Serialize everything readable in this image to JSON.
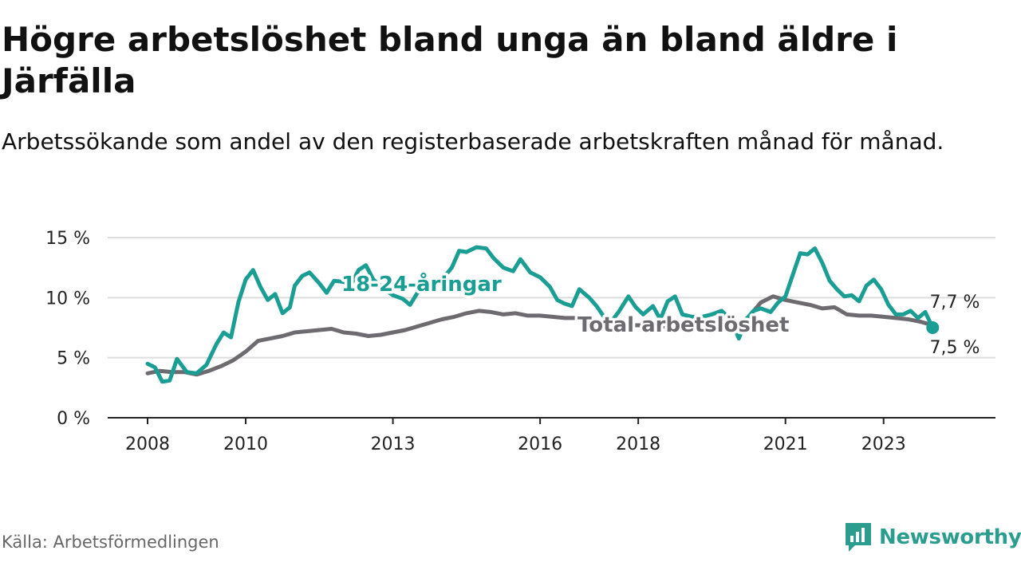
{
  "header": {
    "title": "Högre arbetslöshet bland unga än bland äldre i Järfälla",
    "subtitle": "Arbetssökande som andel av den registerbaserade arbetskraften månad för månad."
  },
  "footer": {
    "source": "Källa: Arbetsförmedlingen",
    "brand": "Newsworthy"
  },
  "colors": {
    "youth": "#1a9e94",
    "total": "#6d6a70",
    "grid": "#dddddd",
    "axis": "#222222",
    "brand": "#2a9d8f"
  },
  "chart_data": {
    "type": "line",
    "title": "Högre arbetslöshet bland unga än bland äldre i Järfälla",
    "subtitle": "Arbetssökande som andel av den registerbaserade arbetskraften månad för månad.",
    "xlabel": "",
    "ylabel": "",
    "xlim": [
      2008,
      2024.5
    ],
    "ylim": [
      0,
      15
    ],
    "x_ticks": [
      2008,
      2010,
      2013,
      2016,
      2018,
      2021,
      2023
    ],
    "x_tick_labels": [
      "2008",
      "2010",
      "2013",
      "2016",
      "2018",
      "2021",
      "2023"
    ],
    "y_ticks": [
      0,
      5,
      10,
      15
    ],
    "y_tick_labels": [
      "0 %",
      "5 %",
      "10 %",
      "15 %"
    ],
    "grid": true,
    "series": [
      {
        "name": "Total arbetslöshet",
        "label": "Total arbetslöshet",
        "end_label": "7,7 %",
        "points": [
          [
            2008.0,
            3.7
          ],
          [
            2008.25,
            3.9
          ],
          [
            2008.5,
            3.8
          ],
          [
            2008.75,
            3.8
          ],
          [
            2009.0,
            3.6
          ],
          [
            2009.25,
            3.9
          ],
          [
            2009.5,
            4.3
          ],
          [
            2009.75,
            4.8
          ],
          [
            2010.0,
            5.5
          ],
          [
            2010.25,
            6.4
          ],
          [
            2010.5,
            6.6
          ],
          [
            2010.75,
            6.8
          ],
          [
            2011.0,
            7.1
          ],
          [
            2011.25,
            7.2
          ],
          [
            2011.5,
            7.3
          ],
          [
            2011.75,
            7.4
          ],
          [
            2012.0,
            7.1
          ],
          [
            2012.25,
            7.0
          ],
          [
            2012.5,
            6.8
          ],
          [
            2012.75,
            6.9
          ],
          [
            2013.0,
            7.1
          ],
          [
            2013.25,
            7.3
          ],
          [
            2013.5,
            7.6
          ],
          [
            2013.75,
            7.9
          ],
          [
            2014.0,
            8.2
          ],
          [
            2014.25,
            8.4
          ],
          [
            2014.5,
            8.7
          ],
          [
            2014.75,
            8.9
          ],
          [
            2015.0,
            8.8
          ],
          [
            2015.25,
            8.6
          ],
          [
            2015.5,
            8.7
          ],
          [
            2015.75,
            8.5
          ],
          [
            2016.0,
            8.5
          ],
          [
            2016.25,
            8.4
          ],
          [
            2016.5,
            8.3
          ],
          [
            2016.75,
            8.3
          ],
          [
            2017.0,
            8.2
          ],
          [
            2017.25,
            8.0
          ],
          [
            2017.5,
            7.8
          ],
          [
            2017.75,
            7.7
          ],
          [
            2018.0,
            7.7
          ],
          [
            2018.25,
            7.6
          ],
          [
            2018.5,
            7.6
          ],
          [
            2018.75,
            7.6
          ],
          [
            2019.0,
            7.5
          ],
          [
            2019.25,
            7.5
          ],
          [
            2019.5,
            7.5
          ],
          [
            2019.75,
            7.6
          ],
          [
            2020.0,
            7.6
          ],
          [
            2020.25,
            8.4
          ],
          [
            2020.5,
            9.6
          ],
          [
            2020.75,
            10.1
          ],
          [
            2021.0,
            9.8
          ],
          [
            2021.25,
            9.6
          ],
          [
            2021.5,
            9.4
          ],
          [
            2021.75,
            9.1
          ],
          [
            2022.0,
            9.2
          ],
          [
            2022.25,
            8.6
          ],
          [
            2022.5,
            8.5
          ],
          [
            2022.75,
            8.5
          ],
          [
            2023.0,
            8.4
          ],
          [
            2023.25,
            8.3
          ],
          [
            2023.5,
            8.2
          ],
          [
            2023.75,
            8.0
          ],
          [
            2024.0,
            7.7
          ]
        ]
      },
      {
        "name": "18-24-åringar",
        "label": "18-24-åringar",
        "end_label": "7,5 %",
        "points": [
          [
            2008.0,
            4.5
          ],
          [
            2008.15,
            4.2
          ],
          [
            2008.3,
            3.0
          ],
          [
            2008.45,
            3.1
          ],
          [
            2008.6,
            4.9
          ],
          [
            2008.8,
            3.8
          ],
          [
            2009.0,
            3.7
          ],
          [
            2009.2,
            4.4
          ],
          [
            2009.4,
            6.1
          ],
          [
            2009.55,
            7.1
          ],
          [
            2009.7,
            6.7
          ],
          [
            2009.85,
            9.6
          ],
          [
            2010.0,
            11.5
          ],
          [
            2010.15,
            12.3
          ],
          [
            2010.3,
            10.9
          ],
          [
            2010.45,
            9.8
          ],
          [
            2010.6,
            10.3
          ],
          [
            2010.75,
            8.7
          ],
          [
            2010.9,
            9.2
          ],
          [
            2011.0,
            11.0
          ],
          [
            2011.15,
            11.8
          ],
          [
            2011.3,
            12.1
          ],
          [
            2011.5,
            11.2
          ],
          [
            2011.65,
            10.4
          ],
          [
            2011.8,
            11.4
          ],
          [
            2012.0,
            11.3
          ],
          [
            2012.15,
            11.1
          ],
          [
            2012.3,
            12.3
          ],
          [
            2012.45,
            12.7
          ],
          [
            2012.6,
            11.5
          ],
          [
            2012.8,
            10.8
          ],
          [
            2013.0,
            10.2
          ],
          [
            2013.2,
            9.9
          ],
          [
            2013.35,
            9.4
          ],
          [
            2013.5,
            10.4
          ],
          [
            2014.0,
            11.5
          ],
          [
            2014.2,
            12.5
          ],
          [
            2014.35,
            13.9
          ],
          [
            2014.5,
            13.8
          ],
          [
            2014.7,
            14.2
          ],
          [
            2014.9,
            14.1
          ],
          [
            2015.05,
            13.3
          ],
          [
            2015.25,
            12.5
          ],
          [
            2015.45,
            12.2
          ],
          [
            2015.6,
            13.2
          ],
          [
            2015.8,
            12.1
          ],
          [
            2016.0,
            11.7
          ],
          [
            2016.2,
            10.9
          ],
          [
            2016.35,
            9.8
          ],
          [
            2016.5,
            9.5
          ],
          [
            2016.65,
            9.3
          ],
          [
            2016.8,
            10.7
          ],
          [
            2017.0,
            10.0
          ],
          [
            2017.15,
            9.3
          ],
          [
            2017.3,
            8.4
          ],
          [
            2017.45,
            8.0
          ],
          [
            2017.6,
            8.8
          ],
          [
            2017.8,
            10.1
          ],
          [
            2017.95,
            9.2
          ],
          [
            2018.1,
            8.6
          ],
          [
            2018.3,
            9.3
          ],
          [
            2018.45,
            8.2
          ],
          [
            2018.6,
            9.7
          ],
          [
            2018.75,
            10.1
          ],
          [
            2018.9,
            8.6
          ],
          [
            2019.1,
            8.4
          ],
          [
            2019.3,
            8.4
          ],
          [
            2019.5,
            8.6
          ],
          [
            2019.7,
            8.9
          ],
          [
            2019.9,
            8.1
          ],
          [
            2020.05,
            6.6
          ],
          [
            2020.2,
            8.2
          ],
          [
            2020.35,
            8.9
          ],
          [
            2020.5,
            9.1
          ],
          [
            2020.7,
            8.8
          ],
          [
            2020.85,
            9.6
          ],
          [
            2021.0,
            10.1
          ],
          [
            2021.15,
            11.9
          ],
          [
            2021.3,
            13.7
          ],
          [
            2021.45,
            13.6
          ],
          [
            2021.6,
            14.1
          ],
          [
            2021.75,
            12.9
          ],
          [
            2021.9,
            11.4
          ],
          [
            2022.05,
            10.7
          ],
          [
            2022.2,
            10.1
          ],
          [
            2022.35,
            10.2
          ],
          [
            2022.5,
            9.7
          ],
          [
            2022.65,
            11.0
          ],
          [
            2022.8,
            11.5
          ],
          [
            2022.95,
            10.7
          ],
          [
            2023.1,
            9.4
          ],
          [
            2023.25,
            8.6
          ],
          [
            2023.4,
            8.6
          ],
          [
            2023.55,
            8.9
          ],
          [
            2023.7,
            8.3
          ],
          [
            2023.85,
            8.8
          ],
          [
            2024.0,
            7.5
          ]
        ]
      }
    ]
  }
}
